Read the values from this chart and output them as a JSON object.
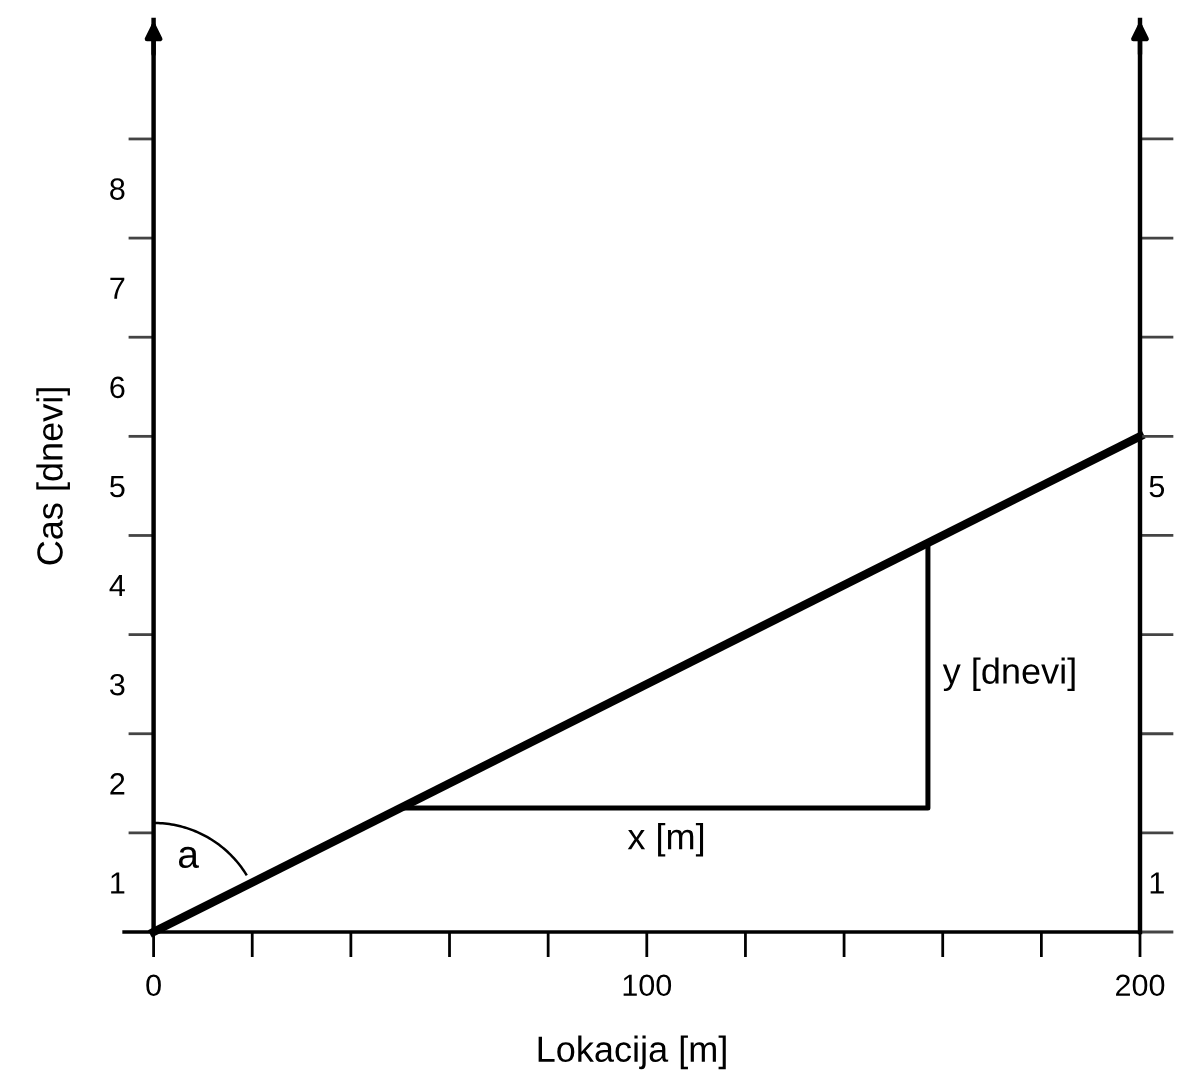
{
  "chart_data": {
    "type": "line",
    "xlabel": "Lokacija [m]",
    "ylabel": "Cas [dnevi]",
    "xlim": [
      -6,
      200
    ],
    "ylim": [
      0,
      9.2
    ],
    "y2lim": [
      0,
      9.2
    ],
    "xticks": [
      0,
      {
        "value": 20,
        "label": null
      },
      {
        "value": 40,
        "label": null
      },
      {
        "value": 60,
        "label": null
      },
      {
        "value": 80,
        "label": null
      },
      100,
      {
        "value": 120,
        "label": null
      },
      {
        "value": 140,
        "label": null
      },
      {
        "value": 160,
        "label": null
      },
      {
        "value": 180,
        "label": null
      },
      200
    ],
    "yticks": [
      {
        "value": 1,
        "label": null
      },
      {
        "value": 2,
        "label": null
      },
      {
        "value": 3,
        "label": null
      },
      {
        "value": 4,
        "label": null
      },
      {
        "value": 5,
        "label": null
      },
      {
        "value": 6,
        "label": null
      },
      {
        "value": 7,
        "label": null
      },
      {
        "value": 8,
        "label": null
      },
      {
        "value": 0.5,
        "label": "1"
      },
      {
        "value": 1.5,
        "label": "2"
      },
      {
        "value": 2.5,
        "label": "3"
      },
      {
        "value": 3.5,
        "label": "4"
      },
      {
        "value": 4.5,
        "label": "5"
      },
      {
        "value": 5.5,
        "label": "6"
      },
      {
        "value": 6.5,
        "label": "7"
      },
      {
        "value": 7.5,
        "label": "8"
      }
    ],
    "y2ticks": [
      {
        "value": 0,
        "label": null
      },
      {
        "value": 1,
        "label": null
      },
      {
        "value": 2,
        "label": null
      },
      {
        "value": 3,
        "label": null
      },
      {
        "value": 4,
        "label": null
      },
      {
        "value": 5,
        "label": null
      },
      {
        "value": 6,
        "label": null
      },
      {
        "value": 7,
        "label": null
      },
      {
        "value": 8,
        "label": null
      },
      {
        "value": 0.5,
        "label": "1"
      },
      {
        "value": 4.5,
        "label": "5"
      }
    ],
    "series": [
      {
        "color": "#000000",
        "x": [
          0,
          200
        ],
        "values": [
          0,
          5
        ]
      },
      {
        "color": "#000000",
        "x": [
          50,
          157,
          157
        ],
        "values": [
          1.25,
          1.25,
          3.9
        ]
      }
    ],
    "annotations": [
      {
        "text": "x [m]",
        "x": 104,
        "y": 1.25
      },
      {
        "text": "y [dnevi]",
        "x": 157,
        "y": 2.6
      },
      "a"
    ],
    "grid": false,
    "legend": false,
    "marker": "none",
    "line_style": "solid"
  }
}
